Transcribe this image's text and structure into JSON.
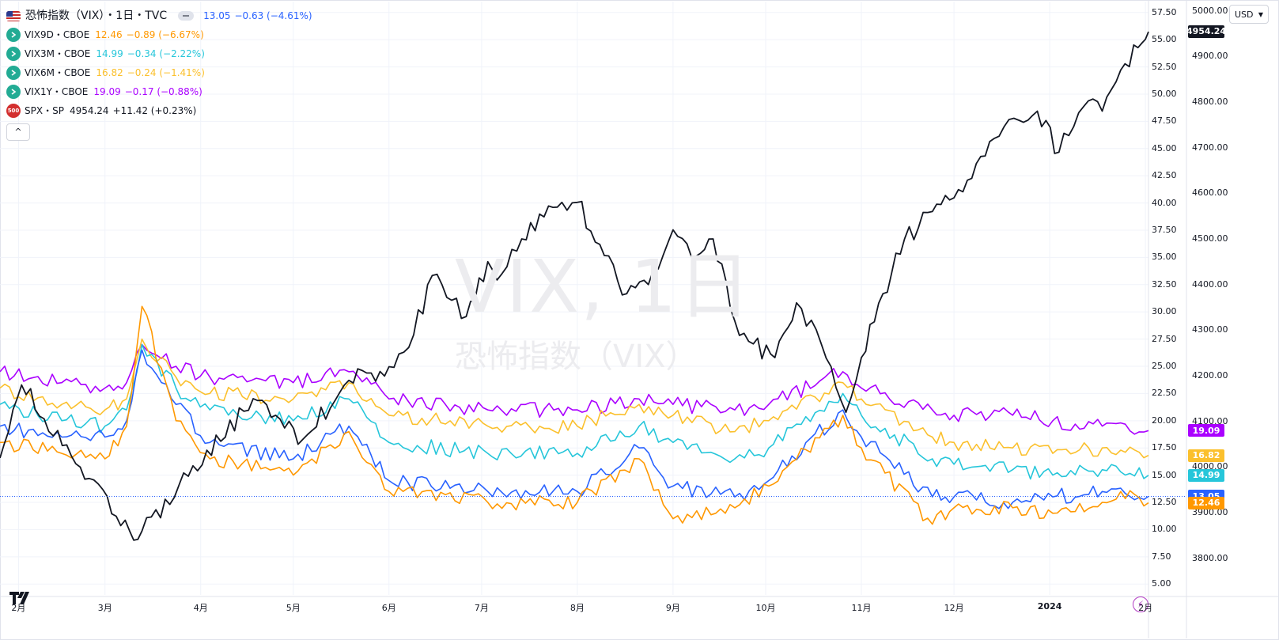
{
  "header": {
    "main_symbol": "恐怖指数（VIX）・1日・TVC",
    "main_last": "13.05",
    "main_change": "−0.63 (−4.61%)",
    "main_color": "#2962ff"
  },
  "legend": [
    {
      "symbol": "VIX9D・CBOE",
      "last": "12.46",
      "change": "−0.89 (−6.67%)",
      "color": "#ff9800",
      "icon": "arrow-right-icon",
      "icon_bg": "#22ab94"
    },
    {
      "symbol": "VIX3M・CBOE",
      "last": "14.99",
      "change": "−0.34 (−2.22%)",
      "color": "#26c6da",
      "icon": "arrow-right-icon",
      "icon_bg": "#22ab94"
    },
    {
      "symbol": "VIX6M・CBOE",
      "last": "16.82",
      "change": "−0.24 (−1.41%)",
      "color": "#fbc02d",
      "icon": "arrow-right-icon",
      "icon_bg": "#22ab94"
    },
    {
      "symbol": "VIX1Y・CBOE",
      "last": "19.09",
      "change": "−0.17 (−0.88%)",
      "color": "#aa00ff",
      "icon": "arrow-right-icon",
      "icon_bg": "#22ab94"
    },
    {
      "symbol": "SPX・SP",
      "last": "4954.24",
      "change": "+11.42 (+0.23%)",
      "color": "#131722",
      "icon": "sp500-badge-icon",
      "icon_text": "500",
      "icon_bg": "#d32f2f"
    }
  ],
  "currency_selector": "USD",
  "watermark": {
    "line1": "VIX, 1日",
    "line2": "恐怖指数（VIX）"
  },
  "chart_data": {
    "type": "line",
    "x_labels": [
      "2月",
      "3月",
      "4月",
      "5月",
      "6月",
      "7月",
      "8月",
      "9月",
      "10月",
      "11月",
      "12月",
      "2024",
      "2月"
    ],
    "x_domain": [
      "2023-01-26",
      "2024-02-02"
    ],
    "x_label_dates": [
      "2023-02-01",
      "2023-03-01",
      "2023-04-01",
      "2023-05-01",
      "2023-06-01",
      "2023-07-01",
      "2023-08-01",
      "2023-09-01",
      "2023-10-01",
      "2023-11-01",
      "2023-12-01",
      "2024-01-01",
      "2024-02-01"
    ],
    "left_axis": {
      "ticks": [
        "57.50",
        "55.00",
        "52.50",
        "50.00",
        "47.50",
        "45.00",
        "42.50",
        "40.00",
        "37.50",
        "35.00",
        "32.50",
        "30.00",
        "27.50",
        "25.00",
        "22.50",
        "20.00",
        "17.50",
        "15.00",
        "12.50",
        "10.00",
        "7.50",
        "5.00"
      ],
      "range": [
        4.0,
        58.5
      ]
    },
    "right_axis": {
      "ticks": [
        "5000.00",
        "4900.00",
        "4800.00",
        "4700.00",
        "4600.00",
        "4500.00",
        "4400.00",
        "4300.00",
        "4200.00",
        "4100.00",
        "4000.00",
        "3900.00",
        "3800.00"
      ],
      "range": [
        3720,
        5020
      ]
    },
    "series": [
      {
        "name": "VIX1Y",
        "color": "#aa00ff",
        "axis": "left",
        "last": 19.09,
        "x": [
          "2023-01-26",
          "2023-02-15",
          "2023-03-01",
          "2023-03-08",
          "2023-03-13",
          "2023-03-24",
          "2023-04-04",
          "2023-05-01",
          "2023-05-19",
          "2023-06-01",
          "2023-07-03",
          "2023-08-01",
          "2023-08-21",
          "2023-09-01",
          "2023-09-21",
          "2023-10-02",
          "2023-10-26",
          "2023-11-01",
          "2023-11-24",
          "2023-12-01",
          "2023-12-20",
          "2024-01-02",
          "2024-01-18",
          "2024-01-24",
          "2024-02-02"
        ],
        "y": [
          24.5,
          23.5,
          23.0,
          23.5,
          27.0,
          25.0,
          24.0,
          23.5,
          24.5,
          22.0,
          21.0,
          21.0,
          22.0,
          21.5,
          21.0,
          21.5,
          24.5,
          23.0,
          21.0,
          20.5,
          20.5,
          20.0,
          19.5,
          19.8,
          19.09
        ]
      },
      {
        "name": "VIX6M",
        "color": "#fbc02d",
        "axis": "left",
        "last": 16.82,
        "x": [
          "2023-01-26",
          "2023-02-15",
          "2023-03-01",
          "2023-03-08",
          "2023-03-13",
          "2023-03-24",
          "2023-04-04",
          "2023-05-01",
          "2023-05-19",
          "2023-06-01",
          "2023-07-03",
          "2023-08-01",
          "2023-08-21",
          "2023-09-01",
          "2023-09-21",
          "2023-10-02",
          "2023-10-26",
          "2023-11-01",
          "2023-11-24",
          "2023-12-01",
          "2023-12-20",
          "2024-01-02",
          "2024-01-18",
          "2024-01-24",
          "2024-02-02"
        ],
        "y": [
          23.0,
          21.5,
          21.0,
          22.0,
          27.5,
          24.0,
          22.5,
          22.0,
          23.5,
          20.5,
          19.5,
          19.5,
          21.5,
          20.5,
          19.0,
          20.0,
          23.5,
          22.0,
          18.5,
          18.0,
          17.5,
          17.0,
          17.5,
          17.3,
          16.82
        ]
      },
      {
        "name": "VIX3M",
        "color": "#26c6da",
        "axis": "left",
        "last": 14.99,
        "x": [
          "2023-01-26",
          "2023-02-15",
          "2023-03-01",
          "2023-03-08",
          "2023-03-13",
          "2023-03-24",
          "2023-04-04",
          "2023-05-01",
          "2023-05-19",
          "2023-06-01",
          "2023-07-03",
          "2023-08-01",
          "2023-08-21",
          "2023-09-01",
          "2023-09-21",
          "2023-10-02",
          "2023-10-26",
          "2023-11-01",
          "2023-11-24",
          "2023-12-01",
          "2023-12-20",
          "2024-01-02",
          "2024-01-18",
          "2024-01-24",
          "2024-02-02"
        ],
        "y": [
          21.5,
          20.0,
          19.5,
          21.0,
          27.0,
          23.0,
          21.0,
          20.0,
          22.0,
          18.0,
          17.0,
          17.0,
          19.5,
          18.0,
          16.5,
          17.5,
          22.5,
          20.5,
          16.5,
          16.0,
          15.5,
          15.0,
          15.5,
          15.3,
          14.99
        ]
      },
      {
        "name": "VIX",
        "color": "#2962ff",
        "axis": "left",
        "last": 13.05,
        "x": [
          "2023-01-26",
          "2023-02-15",
          "2023-03-01",
          "2023-03-08",
          "2023-03-13",
          "2023-03-24",
          "2023-04-04",
          "2023-05-01",
          "2023-05-19",
          "2023-06-01",
          "2023-07-03",
          "2023-08-01",
          "2023-08-21",
          "2023-09-01",
          "2023-09-21",
          "2023-10-02",
          "2023-10-26",
          "2023-11-01",
          "2023-11-24",
          "2023-12-01",
          "2023-12-20",
          "2024-01-02",
          "2024-01-18",
          "2024-01-24",
          "2024-02-02"
        ],
        "y": [
          19.5,
          18.5,
          18.5,
          20.0,
          26.5,
          21.5,
          18.0,
          16.5,
          19.5,
          14.5,
          13.5,
          13.5,
          17.5,
          14.0,
          13.0,
          14.5,
          21.0,
          18.5,
          13.0,
          13.0,
          12.5,
          13.0,
          13.5,
          13.8,
          13.05
        ]
      },
      {
        "name": "VIX9D",
        "color": "#ff9800",
        "axis": "left",
        "last": 12.46,
        "x": [
          "2023-01-26",
          "2023-02-15",
          "2023-03-01",
          "2023-03-08",
          "2023-03-13",
          "2023-03-24",
          "2023-04-04",
          "2023-05-01",
          "2023-05-19",
          "2023-06-01",
          "2023-07-03",
          "2023-08-01",
          "2023-08-21",
          "2023-09-01",
          "2023-09-21",
          "2023-10-02",
          "2023-10-26",
          "2023-11-01",
          "2023-11-24",
          "2023-12-01",
          "2023-12-20",
          "2024-01-02",
          "2024-01-18",
          "2024-01-24",
          "2024-02-02"
        ],
        "y": [
          18.0,
          17.0,
          16.5,
          19.5,
          30.5,
          20.0,
          16.5,
          15.0,
          19.0,
          13.5,
          12.5,
          12.5,
          16.5,
          11.0,
          12.0,
          14.0,
          20.5,
          17.5,
          10.5,
          12.0,
          12.0,
          11.5,
          12.5,
          13.5,
          12.46
        ]
      },
      {
        "name": "SPX",
        "color": "#131722",
        "axis": "right",
        "last": 4954.24,
        "x": [
          "2023-01-26",
          "2023-02-02",
          "2023-02-21",
          "2023-03-09",
          "2023-03-13",
          "2023-03-28",
          "2023-04-18",
          "2023-05-04",
          "2023-05-19",
          "2023-06-01",
          "2023-06-09",
          "2023-06-15",
          "2023-06-26",
          "2023-07-03",
          "2023-07-06",
          "2023-07-14",
          "2023-07-27",
          "2023-08-01",
          "2023-08-17",
          "2023-08-24",
          "2023-09-01",
          "2023-09-07",
          "2023-09-14",
          "2023-09-21",
          "2023-09-27",
          "2023-10-04",
          "2023-10-11",
          "2023-10-19",
          "2023-10-27",
          "2023-11-01",
          "2023-11-08",
          "2023-11-15",
          "2023-11-24",
          "2023-12-01",
          "2023-12-14",
          "2023-12-22",
          "2023-12-28",
          "2024-01-04",
          "2024-01-12",
          "2024-01-18",
          "2024-01-24",
          "2024-01-31",
          "2024-02-02"
        ],
        "y": [
          4020,
          4180,
          4000,
          3860,
          3860,
          3980,
          4150,
          4060,
          4190,
          4220,
          4290,
          4420,
          4330,
          4450,
          4410,
          4500,
          4580,
          4580,
          4380,
          4400,
          4520,
          4460,
          4500,
          4320,
          4270,
          4240,
          4360,
          4270,
          4120,
          4240,
          4380,
          4500,
          4560,
          4590,
          4720,
          4760,
          4780,
          4690,
          4790,
          4780,
          4870,
          4930,
          4954
        ]
      }
    ],
    "price_tags": [
      {
        "label": "4954.24",
        "bg": "#131722",
        "axis": "right",
        "value": 4954.24
      },
      {
        "label": "19.09",
        "bg": "#aa00ff",
        "axis": "left",
        "value": 19.09
      },
      {
        "label": "16.82",
        "bg": "#fbc02d",
        "axis": "left",
        "value": 16.82
      },
      {
        "label": "14.99",
        "bg": "#26c6da",
        "axis": "left",
        "value": 14.99
      },
      {
        "label": "13.05",
        "bg": "#2962ff",
        "axis": "left",
        "value": 13.05
      },
      {
        "label": "12.46",
        "bg": "#ff9800",
        "axis": "left",
        "value": 12.46
      }
    ],
    "grid": true,
    "current_price_line": {
      "value": 13.05,
      "color": "#2962ff",
      "style": "dotted"
    }
  }
}
